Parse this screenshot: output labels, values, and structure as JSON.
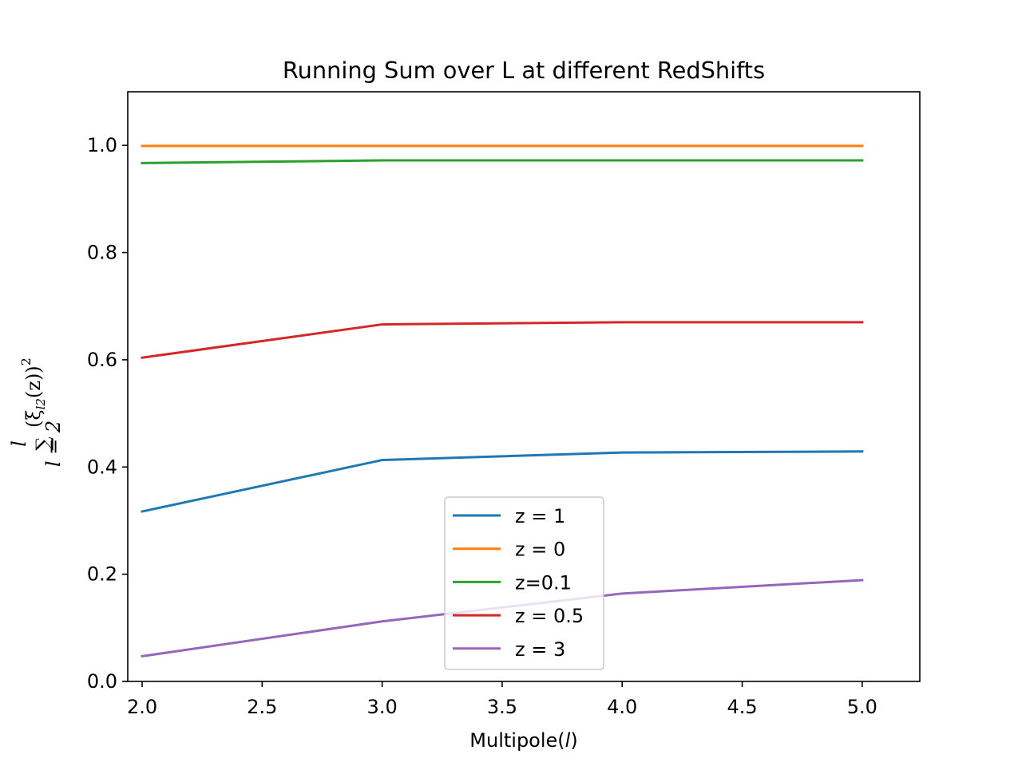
{
  "chart_data": {
    "type": "line",
    "title": "Running Sum over L at different RedShifts",
    "xlabel_prefix": "Multipole(",
    "xlabel_var": "l",
    "xlabel_suffix": ")",
    "ylabel": "Σ_{l=2}^{l} (ξ_{l2}(z))^2",
    "ylabel_parts": {
      "sum_upper": "l",
      "sum_lower": "l = 2",
      "sum_symbol": "∑",
      "body": "(ξ",
      "body_sub": "l2",
      "body_mid": "(z))",
      "body_sup": "2"
    },
    "x": [
      2.0,
      3.0,
      4.0,
      5.0
    ],
    "xlim": [
      1.94,
      5.24
    ],
    "ylim": [
      0.0,
      1.1
    ],
    "xticks": [
      "2.0",
      "2.5",
      "3.0",
      "3.5",
      "4.0",
      "4.5",
      "5.0"
    ],
    "yticks": [
      "0.0",
      "0.2",
      "0.4",
      "0.6",
      "0.8",
      "1.0"
    ],
    "legend_position": "lower center",
    "grid": false,
    "series": [
      {
        "name": "z = 1",
        "color": "#1f77b4",
        "values": [
          0.317,
          0.413,
          0.427,
          0.429
        ]
      },
      {
        "name": "z = 0",
        "color": "#ff7f0e",
        "values": [
          0.999,
          0.999,
          0.999,
          0.999
        ]
      },
      {
        "name": "z=0.1",
        "color": "#2ca02c",
        "values": [
          0.967,
          0.972,
          0.972,
          0.972
        ]
      },
      {
        "name": "z = 0.5",
        "color": "#d62728",
        "values": [
          0.604,
          0.666,
          0.67,
          0.67
        ]
      },
      {
        "name": "z = 3",
        "color": "#9467bd",
        "values": [
          0.047,
          0.112,
          0.164,
          0.189
        ]
      }
    ]
  }
}
